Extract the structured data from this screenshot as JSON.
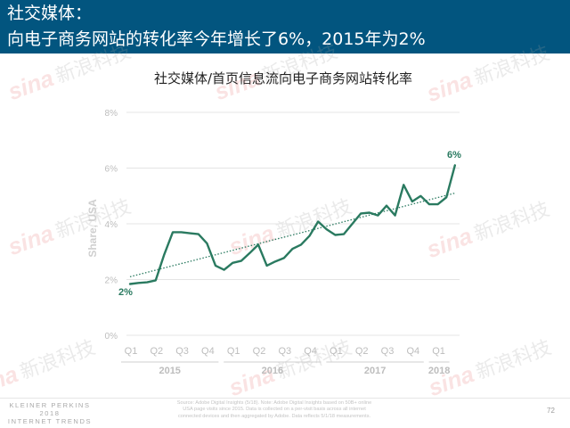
{
  "header": {
    "line1": "社交媒体：",
    "line2": "向电子商务网站的转化率今年增长了6%，2015年为2%",
    "bg_color": "#02557f"
  },
  "watermark": {
    "logo": "sina",
    "text": "新浪科技"
  },
  "chart_data": {
    "type": "line",
    "title": "社交媒体/首页信息流向电子商务网站转化率",
    "xlabel": "",
    "ylabel": "Share, USA",
    "ylim": [
      0,
      8
    ],
    "yticks": [
      {
        "value": 0,
        "label": "0%"
      },
      {
        "value": 2,
        "label": "2%"
      },
      {
        "value": 4,
        "label": "4%"
      },
      {
        "value": 6,
        "label": "6%"
      },
      {
        "value": 8,
        "label": "8%"
      }
    ],
    "grid": true,
    "legend": "none",
    "x_quarters": [
      "Q1",
      "Q2",
      "Q3",
      "Q4",
      "Q1",
      "Q2",
      "Q3",
      "Q4",
      "Q1",
      "Q2",
      "Q3",
      "Q4",
      "Q1"
    ],
    "x_years": [
      {
        "label": "2015",
        "first_quarter": 0,
        "last_quarter": 3
      },
      {
        "label": "2016",
        "first_quarter": 4,
        "last_quarter": 7
      },
      {
        "label": "2017",
        "first_quarter": 8,
        "last_quarter": 11
      },
      {
        "label": "2018",
        "first_quarter": 12,
        "last_quarter": 12
      }
    ],
    "series": [
      {
        "name": "Social media / feed to e-commerce conversion rate",
        "frequency": "monthly",
        "color": "#2a7a60",
        "values": [
          1.84,
          1.88,
          1.9,
          1.97,
          2.9,
          3.7,
          3.7,
          3.66,
          3.63,
          3.3,
          2.5,
          2.35,
          2.6,
          2.67,
          2.95,
          3.25,
          2.5,
          2.65,
          2.77,
          3.1,
          3.25,
          3.57,
          4.08,
          3.8,
          3.6,
          3.63,
          4.0,
          4.37,
          4.4,
          4.3,
          4.65,
          4.3,
          5.4,
          4.8,
          5.0,
          4.7,
          4.7,
          4.95,
          6.1
        ]
      }
    ],
    "trendline": {
      "style": "dotted",
      "color": "#2a7a60",
      "start_value": 2.1,
      "end_value": 5.1
    },
    "annotations": [
      {
        "text": "2%",
        "position": "start"
      },
      {
        "text": "6%",
        "position": "end"
      }
    ]
  },
  "footer": {
    "logo_line1": "KLEINER PERKINS",
    "logo_line2": "2018",
    "logo_line3": "INTERNET TRENDS",
    "source_line1": "Source: Adobe Digital Insights (5/18).  Note: Adobe Digital Insights based on 50B+ online",
    "source_line2": "USA page visits since 2015.  Data is collected on a per-visit basis across all internet",
    "source_line3": "connected devices and then aggregated by Adobe. Data reflects 5/1/18 measurements.",
    "page_number": "72"
  }
}
